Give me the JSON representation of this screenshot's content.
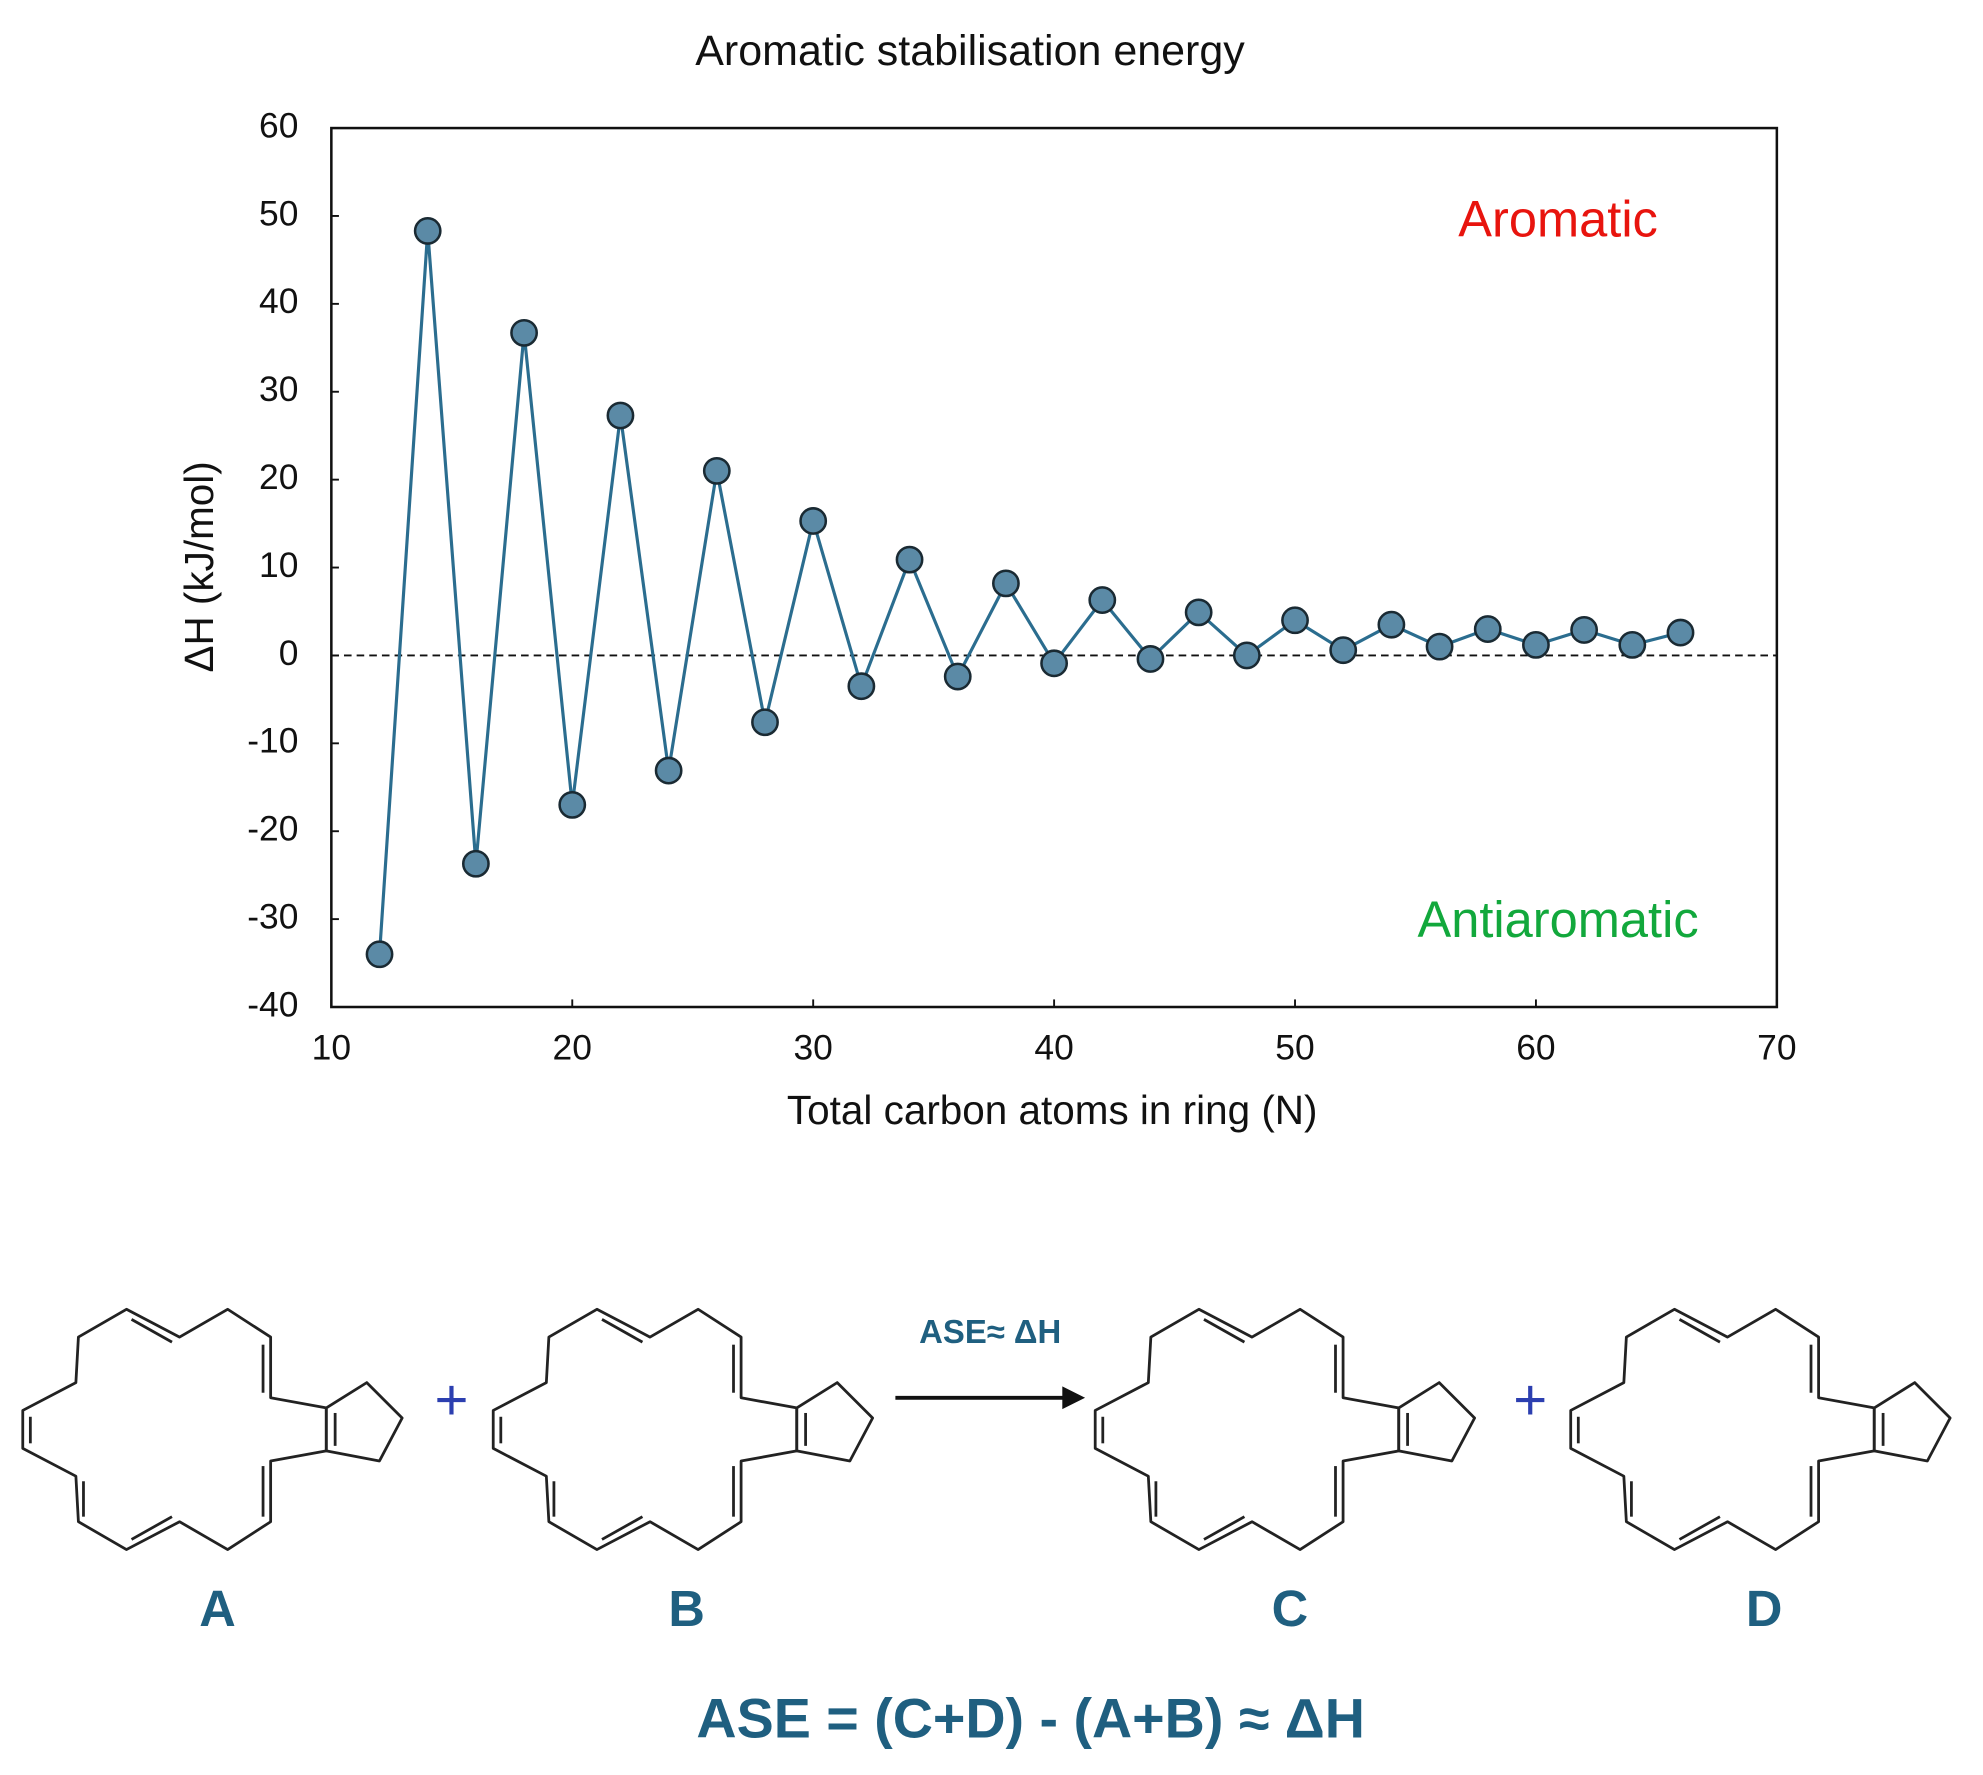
{
  "chart_data": {
    "type": "line",
    "title": "Aromatic stabilisation energy",
    "x_label": "Total carbon atoms in ring (N)",
    "y_label": "ΔH (kJ/mol)",
    "annotations": [
      "Aromatic",
      "Antiaromatic"
    ],
    "annotation_colors": [
      "#e8140e",
      "#12a83c"
    ],
    "x": [
      12,
      14,
      16,
      18,
      20,
      22,
      24,
      26,
      28,
      30,
      32,
      34,
      36,
      38,
      40,
      42,
      44,
      46,
      48,
      50,
      52,
      54,
      56,
      58,
      60,
      62,
      64,
      66
    ],
    "series": [
      {
        "color": "#2b6d8f",
        "marker_color": "#5b8aa6",
        "values": [
          -34,
          48.3,
          -23.7,
          36.7,
          -17,
          27.3,
          -13.1,
          21,
          -7.6,
          15.3,
          -3.5,
          10.9,
          -2.4,
          8.2,
          -0.9,
          6.3,
          -0.4,
          4.9,
          0,
          4,
          0.6,
          3.5,
          1,
          3,
          1.2,
          2.9,
          1.2,
          2.6
        ]
      }
    ],
    "xlim": [
      10,
      70
    ],
    "xticks": [
      10,
      20,
      30,
      40,
      50,
      60,
      70
    ],
    "ylim": [
      -40,
      60
    ],
    "yticks": [
      -40,
      -30,
      -20,
      -10,
      0,
      10,
      20,
      30,
      40,
      50,
      60
    ],
    "zero_line": true
  },
  "diagram": {
    "labels": [
      "A",
      "B",
      "C",
      "D"
    ],
    "operators": [
      "+",
      "+"
    ],
    "arrow_label": "ASE≈ ΔH",
    "equation": "ASE = (C+D) - (A+B) ≈ ΔH"
  }
}
